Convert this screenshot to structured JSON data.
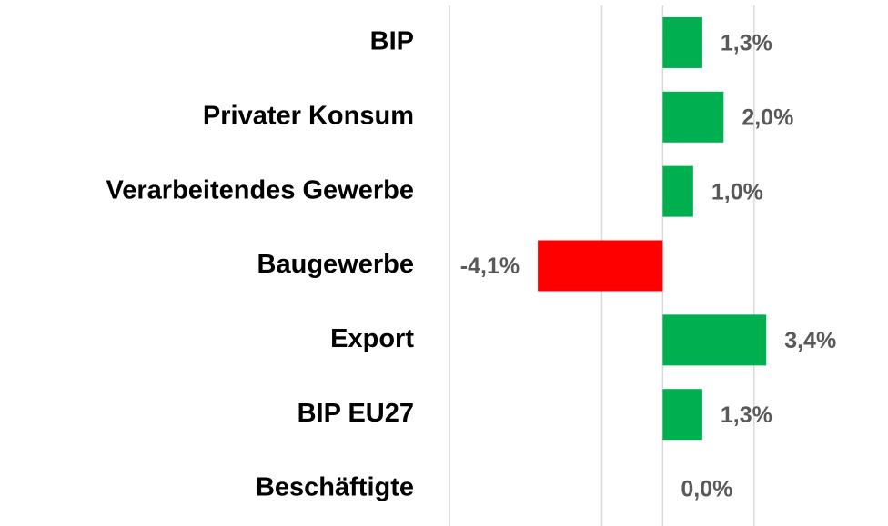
{
  "chart_data": {
    "type": "barh",
    "categories": [
      "BIP",
      "Privater Konsum",
      "Verarbeitendes Gewerbe",
      "Baugewerbe",
      "Export",
      "BIP EU27",
      "Beschäftigte"
    ],
    "values": [
      1.3,
      2.0,
      1.0,
      -4.1,
      3.4,
      1.3,
      0.0
    ],
    "value_labels": [
      "1,3%",
      "2,0%",
      "1,0%",
      "-4,1%",
      "3,4%",
      "1,3%",
      "0,0%"
    ],
    "colors": [
      "#00b050",
      "#00b050",
      "#00b050",
      "#ff0000",
      "#00b050",
      "#00b050",
      "#00b050"
    ],
    "xlim": [
      -7,
      6.5
    ],
    "xticks": [
      -7,
      -2,
      3
    ],
    "grid": true
  }
}
